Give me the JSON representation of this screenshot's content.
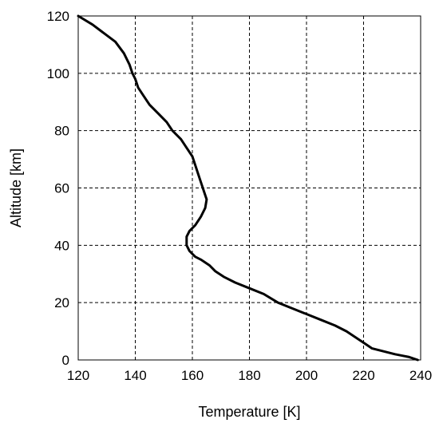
{
  "chart_data": {
    "type": "line",
    "title": "",
    "xlabel": "Temperature [K]",
    "ylabel": "Altitude [km]",
    "xlim": [
      120,
      240
    ],
    "ylim": [
      0,
      120
    ],
    "xticks": [
      "120",
      "140",
      "160",
      "180",
      "200",
      "220",
      "240"
    ],
    "yticks": [
      "0",
      "20",
      "40",
      "60",
      "80",
      "100",
      "120"
    ],
    "grid": true,
    "grid_style": "dashed",
    "legend": "none",
    "line_color": "#000000",
    "series": [
      {
        "x": [
          239,
          236,
          231,
          227,
          223,
          220,
          217,
          214,
          210,
          205,
          200,
          195,
          190,
          185,
          180,
          175,
          171,
          168,
          166,
          163,
          161,
          159,
          158,
          158,
          159,
          161,
          163,
          164.5,
          165,
          164,
          163,
          162,
          161,
          160,
          158,
          156,
          153,
          151,
          148,
          145,
          143,
          141,
          140,
          139,
          138,
          136,
          133,
          129,
          125,
          120
        ],
        "y": [
          0,
          1,
          2,
          3,
          4,
          6,
          8,
          10,
          12,
          14,
          16,
          18,
          20,
          23,
          25,
          27,
          29,
          31,
          33,
          35,
          36,
          38,
          40,
          43,
          45,
          47,
          50,
          53,
          56,
          59,
          62,
          65,
          68,
          71,
          74,
          77,
          80,
          83,
          86,
          89,
          92,
          95,
          98,
          100,
          103,
          107,
          111,
          114,
          117,
          120
        ]
      }
    ]
  }
}
